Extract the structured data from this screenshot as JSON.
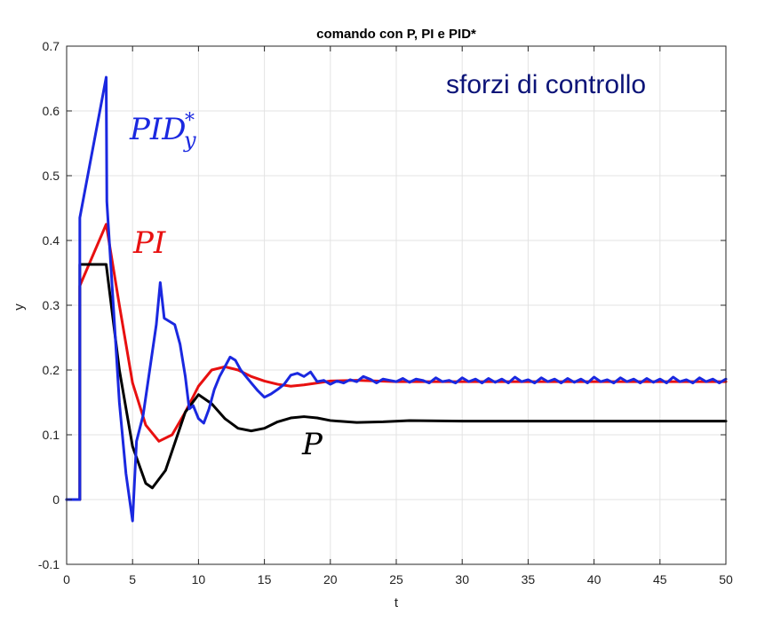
{
  "chart_data": {
    "type": "line",
    "title": "comando con P, PI e PID*",
    "xlabel": "t",
    "ylabel": "y",
    "xlim": [
      0,
      50
    ],
    "ylim": [
      -0.1,
      0.7
    ],
    "xticks": [
      0,
      5,
      10,
      15,
      20,
      25,
      30,
      35,
      40,
      45,
      50
    ],
    "yticks": [
      -0.1,
      0,
      0.1,
      0.2,
      0.3,
      0.4,
      0.5,
      0.6,
      0.7
    ],
    "xtick_labels": [
      "0",
      "5",
      "10",
      "15",
      "20",
      "25",
      "30",
      "35",
      "40",
      "45",
      "50"
    ],
    "ytick_labels": [
      "-0.1",
      "0",
      "0.1",
      "0.2",
      "0.3",
      "0.4",
      "0.5",
      "0.6",
      "0.7"
    ],
    "grid": true,
    "annotations": {
      "main": "sforzi di controllo",
      "pid_base": "PID",
      "pid_sub": "y",
      "pid_sup": "*",
      "pi": "PI",
      "p": "P"
    },
    "colors": {
      "P": "#000000",
      "PI": "#e81010",
      "PID": "#1a28e0",
      "main_annot": "#0c1478"
    },
    "series": [
      {
        "key": "P",
        "color": "#000000",
        "x": [
          0,
          1,
          1,
          3,
          4,
          5,
          6,
          6.5,
          7.5,
          9,
          10,
          11,
          12,
          13,
          14,
          15,
          16,
          17,
          18,
          19,
          20,
          22,
          24,
          26,
          30,
          50
        ],
        "y": [
          0,
          0,
          0.363,
          0.363,
          0.2,
          0.082,
          0.025,
          0.018,
          0.045,
          0.135,
          0.162,
          0.148,
          0.125,
          0.11,
          0.106,
          0.11,
          0.12,
          0.126,
          0.128,
          0.126,
          0.122,
          0.119,
          0.12,
          0.122,
          0.121,
          0.121
        ]
      },
      {
        "key": "PI",
        "color": "#e81010",
        "x": [
          1,
          1,
          3,
          4,
          5,
          6,
          7,
          8,
          9,
          10,
          11,
          12,
          13,
          14,
          15,
          16,
          17,
          18,
          19,
          20,
          22,
          25,
          30,
          50
        ],
        "y": [
          0,
          0.33,
          0.425,
          0.3,
          0.18,
          0.115,
          0.09,
          0.1,
          0.135,
          0.175,
          0.2,
          0.205,
          0.2,
          0.19,
          0.183,
          0.178,
          0.175,
          0.177,
          0.18,
          0.183,
          0.184,
          0.182,
          0.182,
          0.182
        ]
      },
      {
        "key": "PID",
        "color": "#1a28e0",
        "x": [
          0,
          1,
          1,
          3,
          3.05,
          4,
          4.5,
          5,
          5.3,
          5.8,
          6.3,
          6.8,
          7.1,
          7.4,
          7.8,
          8.2,
          8.6,
          9,
          9.3,
          9.6,
          10,
          10.4,
          10.8,
          11.2,
          11.6,
          12,
          12.4,
          12.8,
          13.2,
          13.6,
          14,
          14.5,
          15,
          15.5,
          16,
          16.5,
          17,
          17.5,
          18,
          18.5,
          19,
          19.5,
          20,
          20.5,
          21,
          21.5,
          22,
          22.5,
          23,
          23.5,
          24,
          24.5,
          25,
          25.5,
          26,
          26.5,
          27,
          27.5,
          28,
          28.5,
          29,
          29.5,
          30,
          30.5,
          31,
          31.5,
          32,
          32.5,
          33,
          33.5,
          34,
          34.5,
          35,
          35.5,
          36,
          36.5,
          37,
          37.5,
          38,
          38.5,
          39,
          39.5,
          40,
          40.5,
          41,
          41.5,
          42,
          42.5,
          43,
          43.5,
          44,
          44.5,
          45,
          45.5,
          46,
          46.5,
          47,
          47.5,
          48,
          48.5,
          49,
          49.5,
          50
        ],
        "y": [
          0,
          0,
          0.435,
          0.652,
          0.46,
          0.15,
          0.04,
          -0.033,
          0.09,
          0.13,
          0.2,
          0.27,
          0.335,
          0.28,
          0.275,
          0.27,
          0.24,
          0.19,
          0.14,
          0.145,
          0.125,
          0.118,
          0.14,
          0.17,
          0.19,
          0.205,
          0.22,
          0.215,
          0.2,
          0.19,
          0.18,
          0.168,
          0.158,
          0.163,
          0.17,
          0.178,
          0.192,
          0.195,
          0.19,
          0.197,
          0.182,
          0.184,
          0.178,
          0.183,
          0.18,
          0.185,
          0.182,
          0.19,
          0.186,
          0.18,
          0.186,
          0.184,
          0.182,
          0.187,
          0.181,
          0.186,
          0.184,
          0.18,
          0.188,
          0.182,
          0.184,
          0.18,
          0.188,
          0.182,
          0.186,
          0.18,
          0.187,
          0.181,
          0.186,
          0.18,
          0.189,
          0.182,
          0.185,
          0.18,
          0.188,
          0.182,
          0.186,
          0.18,
          0.187,
          0.181,
          0.186,
          0.18,
          0.189,
          0.182,
          0.185,
          0.18,
          0.188,
          0.182,
          0.186,
          0.18,
          0.187,
          0.181,
          0.186,
          0.18,
          0.189,
          0.182,
          0.185,
          0.18,
          0.188,
          0.182,
          0.186,
          0.18,
          0.186
        ]
      }
    ]
  }
}
